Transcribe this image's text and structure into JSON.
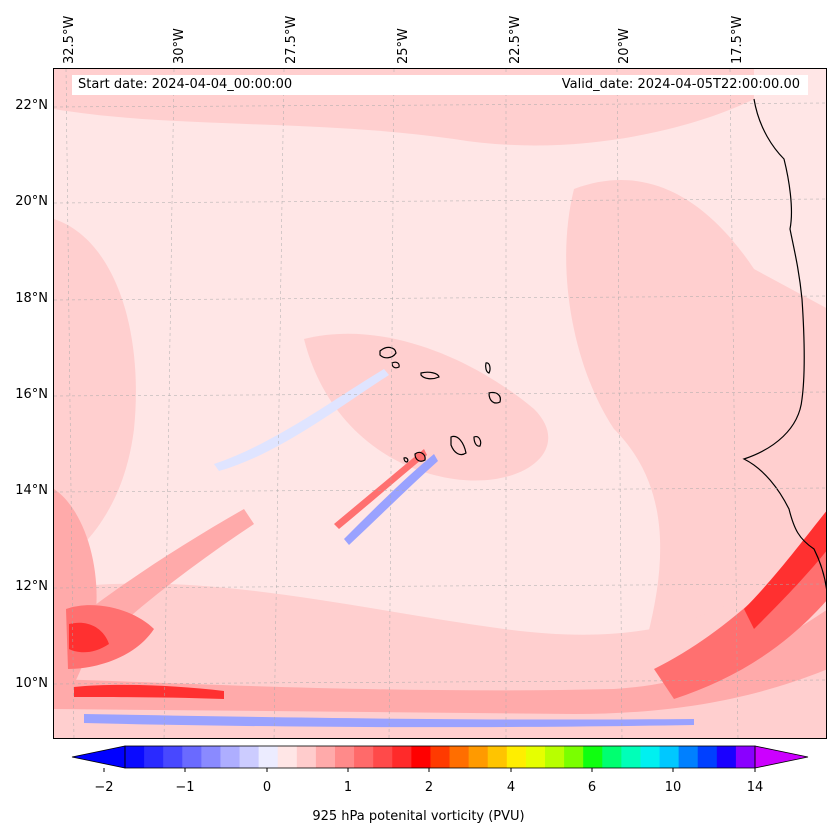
{
  "info": {
    "start_date": "Start date: 2024-04-04_00:00:00",
    "valid_date": "Valid_date: 2024-04-05T22:00:00.00"
  },
  "map": {
    "lon_labels": [
      "32.5°W",
      "30°W",
      "27.5°W",
      "25°W",
      "22.5°W",
      "20°W",
      "17.5°W"
    ],
    "lat_labels": [
      "22°N",
      "20°N",
      "18°N",
      "16°N",
      "14°N",
      "12°N",
      "10°N"
    ],
    "colors": {
      "background": "#ffe6e6",
      "light": "#ffcfcf",
      "medium": "#ffaaaa",
      "strong": "#ff7070",
      "intense": "#ff3030",
      "blue_light": "#dfe4ff",
      "blue": "#9aa2ff",
      "coast": "#000000"
    }
  },
  "colorbar": {
    "label": "925 hPa potenital vorticity (PVU)",
    "ticks": [
      "−2",
      "−1",
      "0",
      "1",
      "2",
      "4",
      "6",
      "10",
      "14"
    ],
    "colors": [
      "#0a0aff",
      "#2a2aff",
      "#4848ff",
      "#6a6aff",
      "#8a8aff",
      "#aeaeff",
      "#ccccff",
      "#ececff",
      "#ffe6e6",
      "#ffcccc",
      "#ffaaaa",
      "#ff8a8a",
      "#ff6a6a",
      "#ff4a4a",
      "#ff2a2a",
      "#ff0000",
      "#ff3a00",
      "#ff6e00",
      "#ff9a00",
      "#ffc400",
      "#ffee00",
      "#e6ff00",
      "#b8ff00",
      "#7aff00",
      "#10ff10",
      "#00ff70",
      "#00ffb8",
      "#00f0f0",
      "#00c8ff",
      "#0080ff",
      "#0040ff",
      "#1a00ff",
      "#8a00ff"
    ],
    "under_color": "#0000ff",
    "over_color": "#cc00ff"
  }
}
